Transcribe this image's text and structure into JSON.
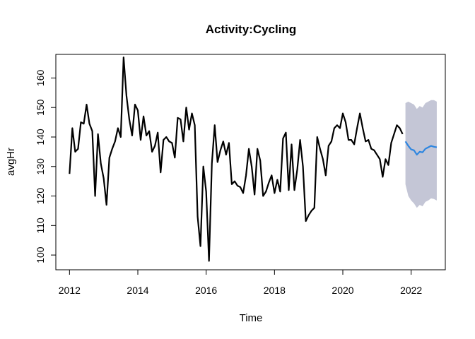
{
  "chart_data": {
    "type": "line",
    "title": "Activity:Cycling",
    "xlabel": "Time",
    "ylabel": "avgHr",
    "xlim": [
      2011.6,
      2023.0
    ],
    "ylim": [
      95,
      168
    ],
    "xticks": [
      2012,
      2014,
      2016,
      2018,
      2020,
      2022
    ],
    "yticks": [
      100,
      110,
      120,
      130,
      140,
      150,
      160
    ],
    "grid": false,
    "series": [
      {
        "color": "#000000",
        "x": [
          2012.0,
          2012.083,
          2012.167,
          2012.25,
          2012.333,
          2012.417,
          2012.5,
          2012.583,
          2012.667,
          2012.75,
          2012.833,
          2012.917,
          2013.0,
          2013.083,
          2013.167,
          2013.25,
          2013.333,
          2013.417,
          2013.5,
          2013.583,
          2013.667,
          2013.75,
          2013.833,
          2013.917,
          2014.0,
          2014.083,
          2014.167,
          2014.25,
          2014.333,
          2014.417,
          2014.5,
          2014.583,
          2014.667,
          2014.75,
          2014.833,
          2014.917,
          2015.0,
          2015.083,
          2015.167,
          2015.25,
          2015.333,
          2015.417,
          2015.5,
          2015.583,
          2015.667,
          2015.75,
          2015.833,
          2015.917,
          2016.0,
          2016.083,
          2016.167,
          2016.25,
          2016.333,
          2016.417,
          2016.5,
          2016.583,
          2016.667,
          2016.75,
          2016.833,
          2016.917,
          2017.0,
          2017.083,
          2017.167,
          2017.25,
          2017.333,
          2017.417,
          2017.5,
          2017.583,
          2017.667,
          2017.75,
          2017.833,
          2017.917,
          2018.0,
          2018.083,
          2018.167,
          2018.25,
          2018.333,
          2018.417,
          2018.5,
          2018.583,
          2018.667,
          2018.75,
          2018.833,
          2018.917,
          2019.0,
          2019.083,
          2019.167,
          2019.25,
          2019.333,
          2019.417,
          2019.5,
          2019.583,
          2019.667,
          2019.75,
          2019.833,
          2019.917,
          2020.0,
          2020.083,
          2020.167,
          2020.25,
          2020.333,
          2020.417,
          2020.5,
          2020.583,
          2020.667,
          2020.75,
          2020.833,
          2020.917,
          2021.0,
          2021.083,
          2021.167,
          2021.25,
          2021.333,
          2021.417,
          2021.5,
          2021.583,
          2021.667,
          2021.75
        ],
        "values": [
          127.5,
          143,
          135,
          136,
          145,
          144.5,
          151,
          144.5,
          142,
          120,
          141,
          131,
          126,
          117,
          133,
          136,
          138.5,
          143,
          140,
          167,
          154,
          146,
          140.5,
          151,
          149,
          139,
          147,
          140.5,
          142,
          135,
          137,
          141.5,
          128,
          139,
          140,
          138.5,
          138,
          133,
          146.5,
          146,
          138.5,
          150,
          142.5,
          148,
          144,
          113,
          103,
          130,
          121.5,
          98,
          131,
          144,
          131.5,
          135.5,
          138.5,
          134,
          138,
          124,
          125,
          123.5,
          123,
          121,
          127,
          136,
          130,
          120.5,
          136,
          132,
          120,
          121.5,
          124.5,
          127,
          121,
          125.5,
          121.5,
          139.5,
          141.5,
          122,
          137.5,
          122,
          129,
          139,
          130,
          111.5,
          113.5,
          115,
          116,
          140,
          136,
          132.5,
          127,
          137,
          138.5,
          143,
          144,
          143,
          148,
          145,
          139,
          139,
          137.5,
          143,
          148,
          143,
          138.5,
          139,
          136,
          135.5,
          134,
          132.5,
          126.5,
          132.5,
          130.5,
          138,
          141,
          144,
          143,
          141
        ]
      },
      {
        "color": "#2e86e0",
        "x": [
          2021.833,
          2021.917,
          2022.0,
          2022.083,
          2022.167,
          2022.25,
          2022.333,
          2022.417,
          2022.5,
          2022.583,
          2022.667,
          2022.75
        ],
        "values": [
          138.5,
          137,
          135.8,
          135.5,
          134,
          135,
          134.8,
          136,
          136.5,
          137,
          136.7,
          136.5
        ]
      }
    ],
    "interval": {
      "color": "#c4c6d6",
      "x": [
        2021.833,
        2021.917,
        2022.0,
        2022.083,
        2022.167,
        2022.25,
        2022.333,
        2022.417,
        2022.5,
        2022.583,
        2022.667,
        2022.75
      ],
      "upper": [
        151.5,
        152,
        151.5,
        151,
        149.5,
        150.5,
        150,
        151.5,
        152,
        152.5,
        152.5,
        152
      ],
      "lower": [
        124,
        120,
        118.5,
        117.5,
        116,
        117,
        116.5,
        118,
        118.5,
        119.2,
        119,
        118.5
      ]
    }
  }
}
